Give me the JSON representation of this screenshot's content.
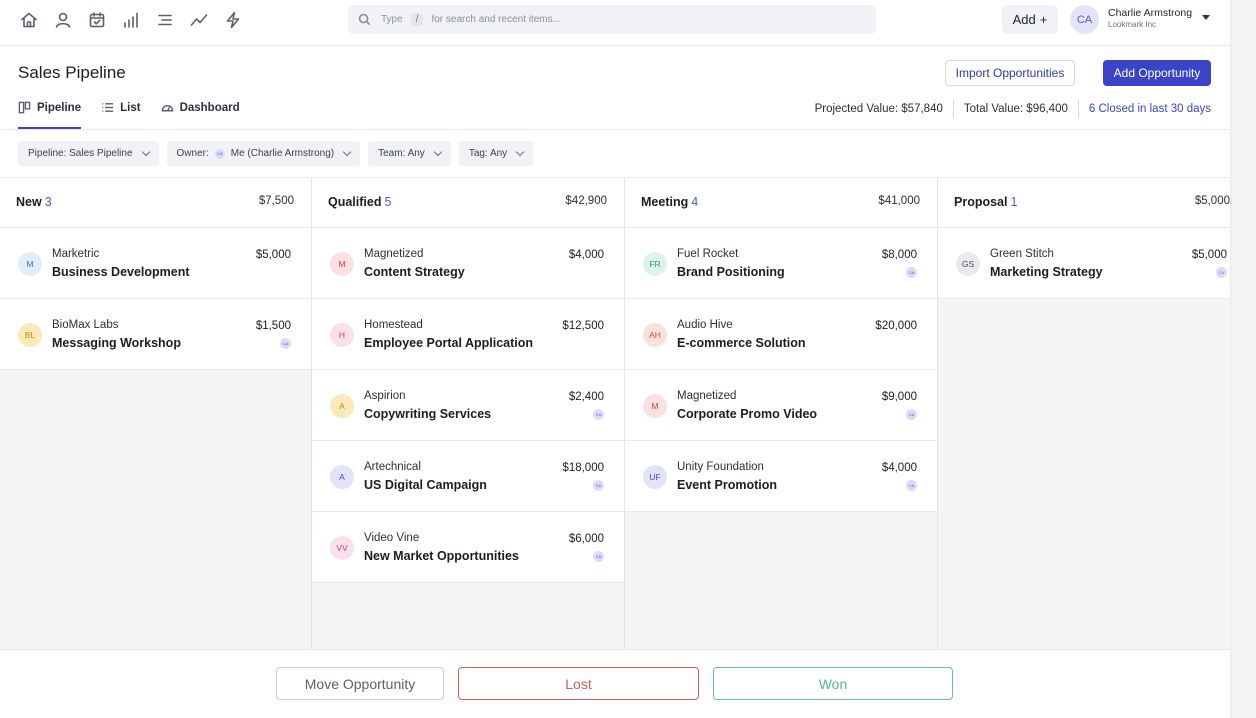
{
  "topbar": {
    "nav_icons": [
      "home-icon",
      "person-icon",
      "calendar-check-icon",
      "bar-chart-icon",
      "list-icon",
      "trend-line-icon",
      "lightning-icon"
    ],
    "search": {
      "type_label": "Type",
      "shortcut": "/",
      "hint": "for search and recent items..."
    },
    "add_label": "Add",
    "add_plus": "+",
    "user": {
      "initials": "CA",
      "name": "Charlie Armstrong",
      "org": "Lookmark Inc"
    }
  },
  "header": {
    "title": "Sales Pipeline",
    "import_label": "Import Opportunities",
    "add_label": "Add Opportunity"
  },
  "tabs": [
    {
      "label": "Pipeline",
      "icon": "kanban-icon",
      "active": true
    },
    {
      "label": "List",
      "icon": "list-icon",
      "active": false
    },
    {
      "label": "Dashboard",
      "icon": "gauge-icon",
      "active": false
    }
  ],
  "stats": {
    "projected": "Projected Value: $57,840",
    "total": "Total Value: $96,400",
    "closed_count": "6",
    "closed_text": "Closed in last 30 days"
  },
  "filters": {
    "pipeline": "Pipeline: Sales Pipeline",
    "owner_label": "Owner:",
    "owner_initials": "CA",
    "owner_value": "Me (Charlie Armstrong)",
    "team": "Team: Any",
    "tag": "Tag: Any"
  },
  "columns": [
    {
      "title": "New",
      "count": "3",
      "total": "$7,500",
      "cards": [
        {
          "initials": "M",
          "company": "Marketric",
          "name": "Business Development",
          "value": "$5,000",
          "owner": "",
          "av_bg": "#dfeefa",
          "av_fg": "#3b6fb0"
        },
        {
          "initials": "BL",
          "company": "BioMax Labs",
          "name": "Messaging Workshop",
          "value": "$1,500",
          "owner": "CA",
          "av_bg": "#fbe9b8",
          "av_fg": "#b98a1c"
        }
      ]
    },
    {
      "title": "Qualified",
      "count": "5",
      "total": "$42,900",
      "cards": [
        {
          "initials": "M",
          "company": "Magnetized",
          "name": "Content Strategy",
          "value": "$4,000",
          "owner": "",
          "av_bg": "#fbe1e1",
          "av_fg": "#c04545"
        },
        {
          "initials": "H",
          "company": "Homestead",
          "name": "Employee Portal Application",
          "value": "$12,500",
          "owner": "",
          "av_bg": "#fbe0ea",
          "av_fg": "#c0457a"
        },
        {
          "initials": "A",
          "company": "Aspirion",
          "name": "Copywriting Services",
          "value": "$2,400",
          "owner": "CA",
          "av_bg": "#fbe9b8",
          "av_fg": "#b98a1c"
        },
        {
          "initials": "A",
          "company": "Artechnical",
          "name": "US Digital Campaign",
          "value": "$18,000",
          "owner": "CA",
          "av_bg": "#e3e3f8",
          "av_fg": "#454fb8"
        },
        {
          "initials": "VV",
          "company": "Video Vine",
          "name": "New Market Opportunities",
          "value": "$6,000",
          "owner": "CA",
          "av_bg": "#fbe0ea",
          "av_fg": "#c0457a"
        }
      ]
    },
    {
      "title": "Meeting",
      "count": "4",
      "total": "$41,000",
      "cards": [
        {
          "initials": "FR",
          "company": "Fuel Rocket",
          "name": "Brand Positioning",
          "value": "$8,000",
          "owner": "CA",
          "av_bg": "#dcf4ea",
          "av_fg": "#2f9a6e"
        },
        {
          "initials": "AH",
          "company": "Audio Hive",
          "name": "E-commerce Solution",
          "value": "$20,000",
          "owner": "",
          "av_bg": "#fbe1dc",
          "av_fg": "#c0553f"
        },
        {
          "initials": "M",
          "company": "Magnetized",
          "name": "Corporate Promo Video",
          "value": "$9,000",
          "owner": "CA",
          "av_bg": "#fbe1e1",
          "av_fg": "#c04545"
        },
        {
          "initials": "UF",
          "company": "Unity Foundation",
          "name": "Event Promotion",
          "value": "$4,000",
          "owner": "CA",
          "av_bg": "#e3e3f8",
          "av_fg": "#454fb8"
        }
      ]
    },
    {
      "title": "Proposal",
      "count": "1",
      "total": "$5,000",
      "cards": [
        {
          "initials": "GS",
          "company": "Green Stitch",
          "name": "Marketing Strategy",
          "value": "$5,000",
          "owner": "CA",
          "av_bg": "#e9e9ee",
          "av_fg": "#4a4f5c"
        }
      ]
    }
  ],
  "bottom": {
    "move": "Move Opportunity",
    "lost": "Lost",
    "won": "Won"
  }
}
